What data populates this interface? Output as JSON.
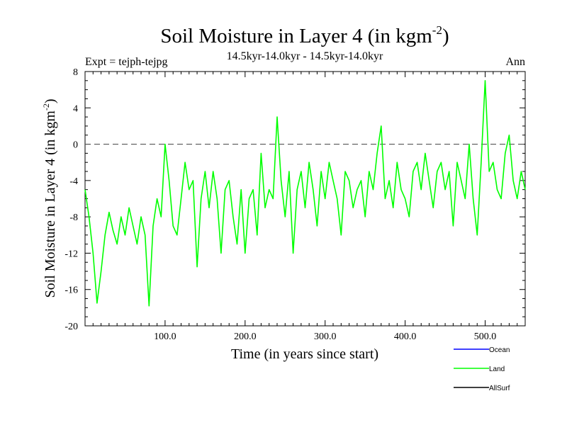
{
  "chart_data": {
    "type": "line",
    "title_main": "Soil Moisture in Layer 4 (in kgm",
    "title_sup": "-2",
    "title_close": ")",
    "subtitle_left": "Expt = tejph-tejpg",
    "subtitle_center": "14.5kyr-14.0kyr - 14.5kyr-14.0kyr",
    "subtitle_right": "Ann",
    "xlabel": "Time (in years since start)",
    "ylabel_main": "Soil Moisture in Layer 4 (in kgm",
    "ylabel_sup": "-2",
    "ylabel_close": ")",
    "xlim": [
      0,
      550
    ],
    "ylim": [
      -20,
      8
    ],
    "xticks": [
      100,
      200,
      300,
      400,
      500
    ],
    "xtick_labels": [
      "100.0",
      "200.0",
      "300.0",
      "400.0",
      "500.0"
    ],
    "yticks": [
      8,
      4,
      0,
      -4,
      -8,
      -12,
      -16,
      -20
    ],
    "ytick_labels": [
      "8",
      "4",
      "0",
      "-4",
      "-8",
      "-12",
      "-16",
      "-20"
    ],
    "reference_line": 0,
    "legend": [
      {
        "name": "Ocean",
        "color": "#0000ff"
      },
      {
        "name": "Land",
        "color": "#00ff00"
      },
      {
        "name": "AllSurf",
        "color": "#000000"
      }
    ],
    "series": [
      {
        "name": "Land",
        "color": "#00ff00",
        "x": [
          0,
          5,
          10,
          15,
          20,
          25,
          30,
          35,
          40,
          45,
          50,
          55,
          60,
          65,
          70,
          75,
          80,
          85,
          90,
          95,
          100,
          105,
          110,
          115,
          120,
          125,
          130,
          135,
          140,
          145,
          150,
          155,
          160,
          165,
          170,
          175,
          180,
          185,
          190,
          195,
          200,
          205,
          210,
          215,
          220,
          225,
          230,
          235,
          240,
          245,
          250,
          255,
          260,
          265,
          270,
          275,
          280,
          285,
          290,
          295,
          300,
          305,
          310,
          315,
          320,
          325,
          330,
          335,
          340,
          345,
          350,
          355,
          360,
          365,
          370,
          375,
          380,
          385,
          390,
          395,
          400,
          405,
          410,
          415,
          420,
          425,
          430,
          435,
          440,
          445,
          450,
          455,
          460,
          465,
          470,
          475,
          480,
          485,
          490,
          495,
          500,
          505,
          510,
          515,
          520,
          525,
          530,
          535,
          540,
          545,
          550
        ],
        "values": [
          -5,
          -8,
          -12,
          -17.5,
          -14,
          -10,
          -7.5,
          -9.5,
          -11,
          -8,
          -10,
          -7,
          -9,
          -11,
          -8,
          -10,
          -17.8,
          -9,
          -6,
          -8,
          0,
          -4,
          -9,
          -10,
          -6,
          -2,
          -5,
          -4,
          -13.5,
          -6,
          -3,
          -7,
          -3,
          -6,
          -12,
          -5,
          -4,
          -8,
          -11,
          -5,
          -12,
          -6,
          -5,
          -10,
          -1,
          -7,
          -5,
          -6,
          3,
          -4,
          -8,
          -3,
          -12,
          -5,
          -3,
          -7,
          -2,
          -5,
          -9,
          -3,
          -6,
          -2,
          -4,
          -6,
          -10,
          -3,
          -4,
          -7,
          -5,
          -4,
          -8,
          -3,
          -5,
          -1,
          2,
          -6,
          -4,
          -7,
          -2,
          -5,
          -6,
          -8,
          -3,
          -2,
          -5,
          -1,
          -4,
          -7,
          -3,
          -2,
          -5,
          -3,
          -9,
          -2,
          -4,
          -6,
          0,
          -6,
          -10,
          -2,
          7,
          -3,
          -2,
          -5,
          -6,
          -1,
          1,
          -4,
          -6,
          -3,
          -5
        ]
      }
    ]
  }
}
